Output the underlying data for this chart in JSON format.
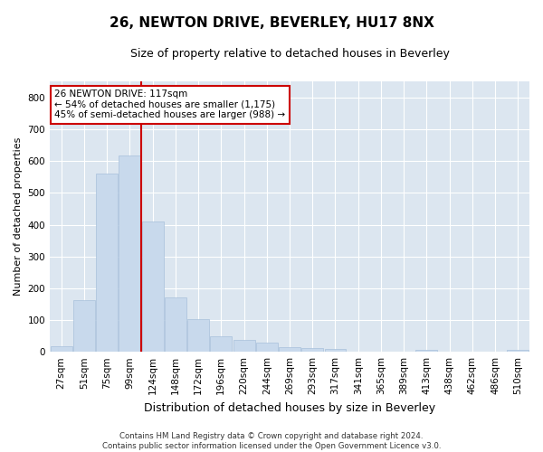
{
  "title": "26, NEWTON DRIVE, BEVERLEY, HU17 8NX",
  "subtitle": "Size of property relative to detached houses in Beverley",
  "xlabel": "Distribution of detached houses by size in Beverley",
  "ylabel": "Number of detached properties",
  "bar_color": "#c8d9ec",
  "bar_edge_color": "#a8c0db",
  "background_color": "#dce6f0",
  "grid_color": "#ffffff",
  "fig_color": "#ffffff",
  "categories": [
    "27sqm",
    "51sqm",
    "75sqm",
    "99sqm",
    "124sqm",
    "148sqm",
    "172sqm",
    "196sqm",
    "220sqm",
    "244sqm",
    "269sqm",
    "293sqm",
    "317sqm",
    "341sqm",
    "365sqm",
    "389sqm",
    "413sqm",
    "438sqm",
    "462sqm",
    "486sqm",
    "510sqm"
  ],
  "values": [
    18,
    163,
    560,
    617,
    410,
    170,
    103,
    50,
    38,
    30,
    14,
    13,
    10,
    0,
    0,
    0,
    7,
    0,
    0,
    0,
    7
  ],
  "vline_color": "#cc0000",
  "vline_pos": 3.5,
  "annotation_line1": "26 NEWTON DRIVE: 117sqm",
  "annotation_line2": "← 54% of detached houses are smaller (1,175)",
  "annotation_line3": "45% of semi-detached houses are larger (988) →",
  "annotation_box_color": "#ffffff",
  "annotation_box_edge": "#cc0000",
  "footnote_line1": "Contains HM Land Registry data © Crown copyright and database right 2024.",
  "footnote_line2": "Contains public sector information licensed under the Open Government Licence v3.0.",
  "ylim": [
    0,
    850
  ],
  "yticks": [
    0,
    100,
    200,
    300,
    400,
    500,
    600,
    700,
    800
  ],
  "title_fontsize": 11,
  "subtitle_fontsize": 9,
  "tick_fontsize": 7.5,
  "ylabel_fontsize": 8,
  "xlabel_fontsize": 9
}
